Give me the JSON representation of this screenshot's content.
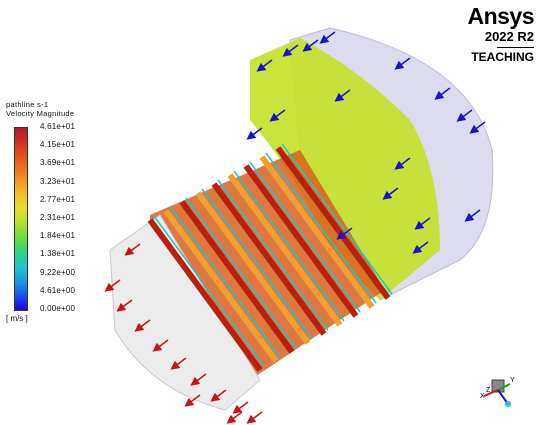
{
  "brand": {
    "name": "Ansys",
    "version": "2022 R2",
    "edition": "TEACHING"
  },
  "legend": {
    "title_line1": "pathline s-1",
    "title_line2": "Velocity Magnitude",
    "ticks": [
      "4.61e+01",
      "4.15e+01",
      "3.69e+01",
      "3.23e+01",
      "2.77e+01",
      "2.31e+01",
      "1.84e+01",
      "1.38e+01",
      "9.22e+00",
      "4.61e+00",
      "0.00e+00"
    ],
    "unit": "[ m/s ]"
  },
  "colors": {
    "inflow_arrow": "#1a14c8",
    "outflow_arrow": "#c81414",
    "body_fill": "#dcdcec",
    "high": "#d4381a",
    "mid": "#c4e028",
    "low": "#1a3ff0"
  },
  "triad": {
    "x_label": "X",
    "y_label": "Y",
    "z_label": "Z"
  }
}
